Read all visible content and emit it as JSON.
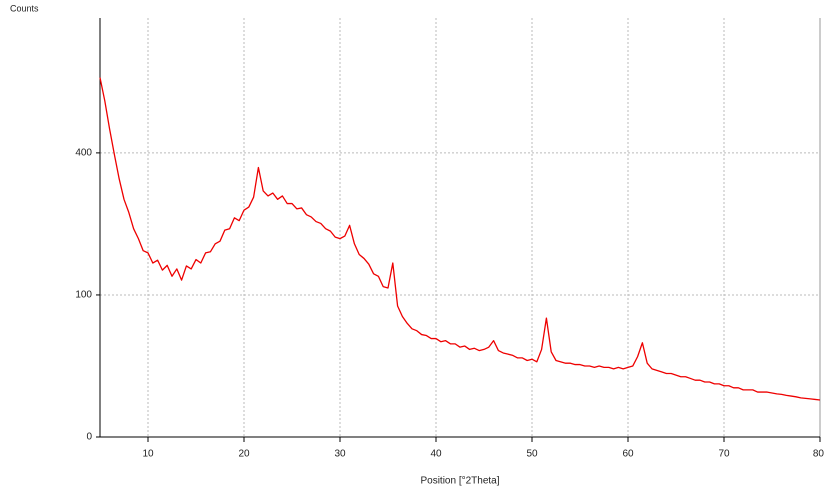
{
  "chart_data": {
    "type": "line",
    "y_axis_label": "Counts",
    "x_axis_label": "Position [°2Theta]",
    "yscale": "sqrt",
    "xlim": [
      5,
      80
    ],
    "ylim": [
      0,
      870
    ],
    "xticks": [
      10,
      20,
      30,
      40,
      50,
      60,
      70,
      80
    ],
    "yticks": [
      0,
      100,
      400
    ],
    "grid": true,
    "x": [
      5,
      5.5,
      6,
      6.5,
      7,
      7.5,
      8,
      8.5,
      9,
      9.5,
      10,
      10.5,
      11,
      11.5,
      12,
      12.5,
      13,
      13.5,
      14,
      14.5,
      15,
      15.5,
      16,
      16.5,
      17,
      17.5,
      18,
      18.5,
      19,
      19.5,
      20,
      20.5,
      21,
      21.5,
      22,
      22.5,
      23,
      23.5,
      24,
      24.5,
      25,
      25.5,
      26,
      26.5,
      27,
      27.5,
      28,
      28.5,
      29,
      29.5,
      30,
      30.5,
      31,
      31.5,
      32,
      32.5,
      33,
      33.5,
      34,
      34.5,
      35,
      35.5,
      36,
      36.5,
      37,
      37.5,
      38,
      38.5,
      39,
      39.5,
      40,
      40.5,
      41,
      41.5,
      42,
      42.5,
      43,
      43.5,
      44,
      44.5,
      45,
      45.5,
      46,
      46.5,
      47,
      47.5,
      48,
      48.5,
      49,
      49.5,
      50,
      50.5,
      51,
      51.5,
      52,
      52.5,
      53,
      53.5,
      54,
      54.5,
      55,
      55.5,
      56,
      56.5,
      57,
      57.5,
      58,
      58.5,
      59,
      59.5,
      60,
      60.5,
      61,
      61.5,
      62,
      62.5,
      63,
      63.5,
      64,
      64.5,
      65,
      65.5,
      66,
      66.5,
      67,
      67.5,
      68,
      68.5,
      69,
      69.5,
      70,
      70.5,
      71,
      71.5,
      72,
      72.5,
      73,
      73.5,
      74,
      74.5,
      75,
      75.5,
      76,
      76.5,
      77,
      77.5,
      78,
      78.5,
      79,
      79.5,
      80
    ],
    "series": [
      {
        "color": "#ee0000",
        "values": [
          640,
          560,
          470,
          395,
          330,
          280,
          250,
          215,
          195,
          172,
          168,
          150,
          155,
          138,
          146,
          128,
          140,
          122,
          145,
          140,
          156,
          150,
          168,
          170,
          185,
          190,
          212,
          215,
          238,
          232,
          255,
          262,
          285,
          360,
          300,
          288,
          295,
          280,
          288,
          270,
          270,
          258,
          260,
          245,
          240,
          230,
          226,
          215,
          210,
          198,
          195,
          200,
          222,
          185,
          165,
          158,
          148,
          132,
          128,
          112,
          110,
          150,
          85,
          72,
          64,
          58,
          56,
          52,
          51,
          48,
          48,
          45,
          46,
          43,
          43,
          40,
          41,
          38,
          39,
          37,
          38,
          40,
          46,
          37,
          35,
          34,
          33,
          31,
          31,
          29,
          30,
          28,
          38,
          70,
          36,
          29,
          28,
          27,
          27,
          26,
          26,
          25,
          25,
          24,
          25,
          24,
          24,
          23,
          24,
          23,
          24,
          25,
          32,
          44,
          27,
          23,
          22,
          21,
          20,
          20,
          19,
          18,
          18,
          17,
          16,
          16,
          15,
          15,
          14,
          14,
          13,
          13,
          12,
          12,
          11,
          11,
          11,
          10,
          10,
          10,
          9.6,
          9.2,
          9,
          8.6,
          8.3,
          8,
          7.6,
          7.4,
          7.2,
          7,
          6.8
        ]
      }
    ]
  }
}
